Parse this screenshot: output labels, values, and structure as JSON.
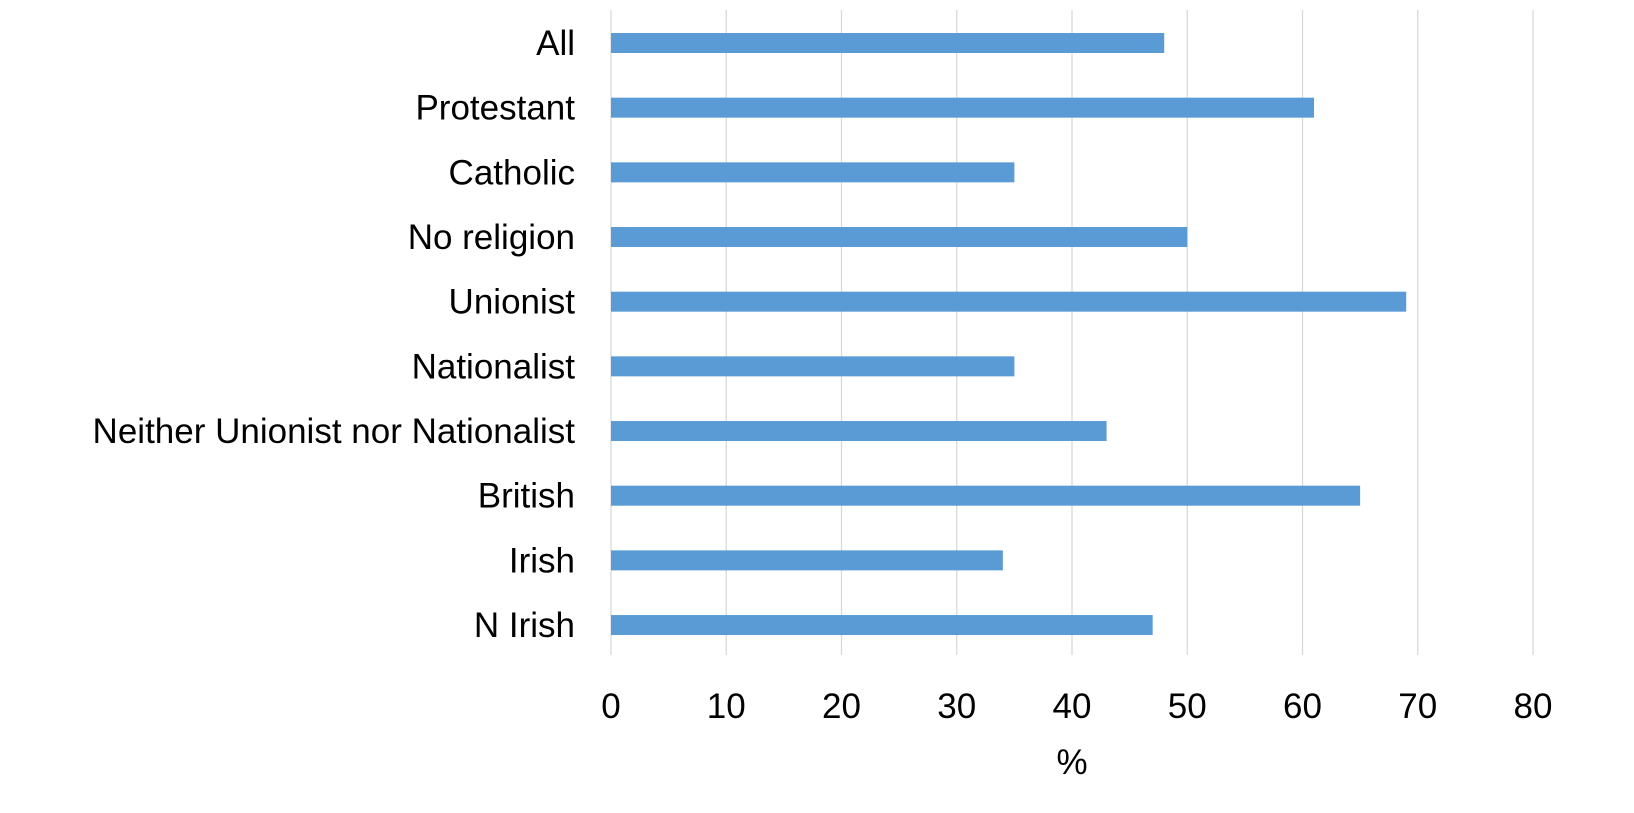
{
  "chart_data": {
    "type": "bar",
    "orientation": "horizontal",
    "categories": [
      "All",
      "Protestant",
      "Catholic",
      "No religion",
      "Unionist",
      "Nationalist",
      "Neither Unionist nor Nationalist",
      "British",
      "Irish",
      "N Irish"
    ],
    "values": [
      48,
      61,
      35,
      50,
      69,
      35,
      43,
      65,
      34,
      47
    ],
    "xlabel": "%",
    "ylabel": "",
    "title": "",
    "xlim": [
      0,
      80
    ],
    "xticks": [
      0,
      10,
      20,
      30,
      40,
      50,
      60,
      70,
      80
    ],
    "grid": "vertical",
    "legend": "none",
    "bar_color": "#5b9bd5",
    "grid_color": "#d9d9d9"
  }
}
